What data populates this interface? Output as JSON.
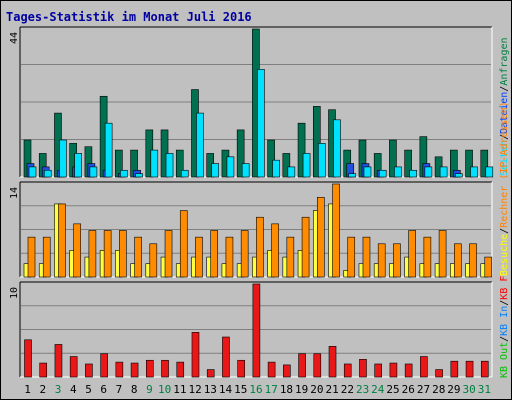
{
  "chart_data": [
    {
      "type": "bar",
      "title": "Tages-Statistik im Monat Juli 2016",
      "ymax_label": "44",
      "ylim": [
        0,
        44
      ],
      "categories": [
        "1",
        "2",
        "3",
        "4",
        "5",
        "6",
        "7",
        "8",
        "9",
        "10",
        "11",
        "12",
        "13",
        "14",
        "15",
        "16",
        "17",
        "18",
        "19",
        "20",
        "21",
        "22",
        "23",
        "24",
        "25",
        "26",
        "27",
        "28",
        "29",
        "30",
        "31"
      ],
      "weekend_days": [
        "3",
        "9",
        "10",
        "16",
        "17",
        "23",
        "24",
        "30",
        "31"
      ],
      "legend": [
        {
          "label": "Anfragen",
          "color": "#008040"
        },
        {
          "label": "Dateien",
          "color": "#0040FF"
        },
        {
          "label": "Seiten",
          "color": "#00E0FF"
        }
      ],
      "series": [
        {
          "name": "Anfragen",
          "color": "#007050",
          "values": [
            11,
            7,
            19,
            10,
            9,
            24,
            8,
            8,
            14,
            14,
            8,
            26,
            7,
            8,
            14,
            44,
            11,
            7,
            16,
            21,
            20,
            8,
            11,
            7,
            11,
            8,
            12,
            6,
            8,
            8,
            8
          ]
        },
        {
          "name": "Dateien",
          "color": "#2050E0",
          "values": [
            4,
            3,
            2,
            3,
            4,
            2,
            1,
            2,
            0,
            0,
            0,
            0,
            0,
            0,
            0,
            0,
            0,
            0,
            0,
            0,
            0,
            4,
            4,
            2,
            0,
            0,
            4,
            0,
            2,
            0,
            0
          ]
        },
        {
          "name": "Seiten",
          "color": "#00E0FF",
          "values": [
            3,
            2,
            11,
            7,
            3,
            16,
            2,
            1,
            8,
            7,
            2,
            19,
            4,
            6,
            4,
            32,
            5,
            3,
            7,
            10,
            17,
            1,
            3,
            2,
            3,
            2,
            3,
            3,
            1,
            3,
            3
          ]
        }
      ]
    },
    {
      "type": "bar",
      "ymax_label": "14",
      "ylim": [
        0,
        14
      ],
      "legend": [
        {
          "label": "Rechner (IP-Adressen)",
          "color": "#FF8000"
        },
        {
          "label": "Besuche",
          "color": "#FFFF00"
        }
      ],
      "series": [
        {
          "name": "Besuche",
          "color": "#FFFF40",
          "values": [
            2,
            2,
            11,
            4,
            3,
            4,
            4,
            2,
            2,
            3,
            2,
            3,
            3,
            2,
            2,
            3,
            4,
            3,
            4,
            10,
            11,
            1,
            2,
            2,
            2,
            3,
            2,
            2,
            2,
            2,
            2
          ]
        },
        {
          "name": "Rechner (IP-Adressen)",
          "color": "#FF8C00",
          "values": [
            6,
            6,
            11,
            8,
            7,
            7,
            7,
            6,
            5,
            7,
            10,
            6,
            7,
            6,
            7,
            9,
            8,
            6,
            9,
            12,
            14,
            6,
            6,
            5,
            5,
            7,
            6,
            7,
            5,
            5,
            3
          ]
        }
      ]
    },
    {
      "type": "bar",
      "ymax_label": "10",
      "ylim": [
        0,
        10
      ],
      "legend": [
        {
          "label": "KB F",
          "color": "#FF0000"
        },
        {
          "label": "KB In",
          "color": "#0080FF"
        },
        {
          "label": "KB Out",
          "color": "#00C000"
        }
      ],
      "series": [
        {
          "name": "KB F",
          "color": "#E81818",
          "values": [
            4,
            1.5,
            3.5,
            2.2,
            1.4,
            2.5,
            1.6,
            1.5,
            1.8,
            1.8,
            1.6,
            4.8,
            0.8,
            4.3,
            1.8,
            10,
            1.6,
            1.3,
            2.5,
            2.5,
            3.3,
            1.4,
            1.9,
            1.4,
            1.5,
            1.4,
            2.2,
            0.8,
            1.7,
            1.7,
            1.7
          ]
        }
      ]
    }
  ]
}
